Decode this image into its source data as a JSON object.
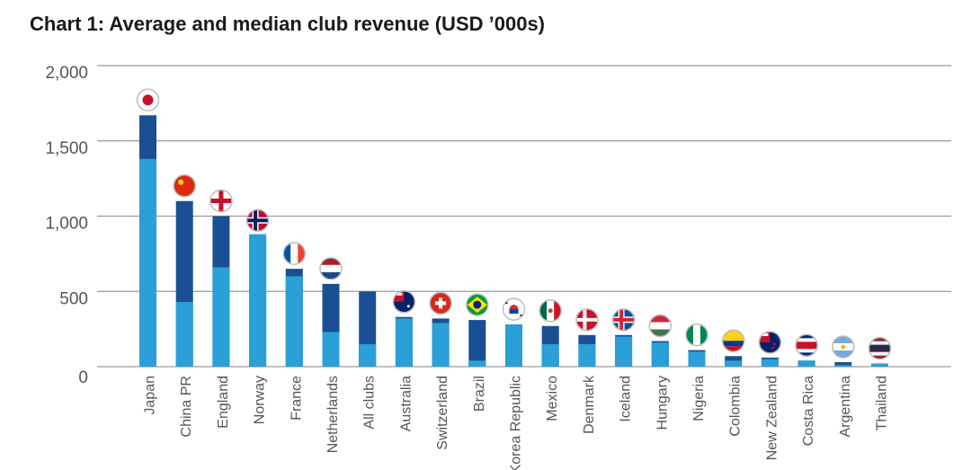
{
  "chart_data": {
    "type": "bar",
    "title": "Chart 1: Average and median club revenue (USD ’000s)",
    "xlabel": "",
    "ylabel": "",
    "ylim": [
      0,
      2000
    ],
    "yticks": [
      0,
      500,
      1000,
      1500,
      2000
    ],
    "ytick_labels": [
      "0",
      "500",
      "1,000",
      "1,500",
      "2,000"
    ],
    "grid": true,
    "categories": [
      "Japan",
      "China PR",
      "England",
      "Norway",
      "France",
      "Netherlands",
      "All clubs",
      "Australia",
      "Switzerland",
      "Brazil",
      "Korea Republic",
      "Mexico",
      "Denmark",
      "Iceland",
      "Hungary",
      "Nigeria",
      "Colombia",
      "New Zealand",
      "Costa Rica",
      "Argentina",
      "Thailand"
    ],
    "series": [
      {
        "values": [
          1380,
          430,
          660,
          880,
          600,
          230,
          150,
          320,
          290,
          40,
          280,
          150,
          150,
          200,
          160,
          100,
          40,
          50,
          40,
          10,
          20
        ]
      },
      {
        "values": [
          1670,
          1100,
          1000,
          870,
          650,
          550,
          500,
          330,
          320,
          310,
          280,
          270,
          210,
          210,
          170,
          110,
          70,
          60,
          40,
          30,
          20
        ]
      }
    ],
    "flags": [
      "japan-flag",
      "china-flag",
      "england-flag",
      "norway-flag",
      "france-flag",
      "netherlands-flag",
      "",
      "australia-flag",
      "switzerland-flag",
      "brazil-flag",
      "korea-flag",
      "mexico-flag",
      "denmark-flag",
      "iceland-flag",
      "hungary-flag",
      "nigeria-flag",
      "colombia-flag",
      "new-zealand-flag",
      "costa-rica-flag",
      "argentina-flag",
      "thailand-flag"
    ],
    "colors": {
      "light": "#2a9fd8",
      "dark": "#1b4f93",
      "grid": "#9a9a9a",
      "text": "#555555"
    }
  }
}
